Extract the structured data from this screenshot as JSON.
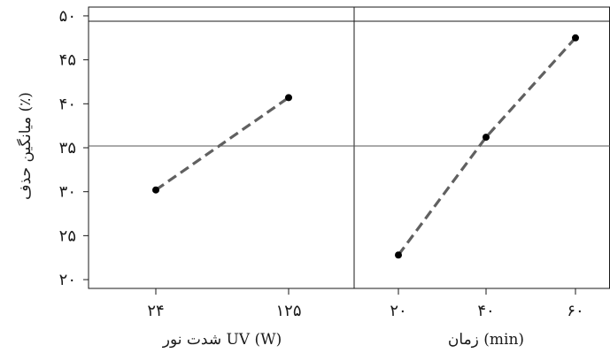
{
  "chart_data": {
    "type": "line",
    "ylabel": "میانگین حذف (٪)",
    "ylim": [
      19,
      51
    ],
    "yticks": [
      20,
      25,
      30,
      35,
      40,
      45,
      50
    ],
    "ytick_labels": [
      "۲۰",
      "۲۵",
      "۳۰",
      "۳۵",
      "۴۰",
      "۴۵",
      "۵۰"
    ],
    "reference_line": 35.2,
    "line_color": "#606060",
    "line_style": "dashed",
    "panels": [
      {
        "xlabel": "شدت نور UV (W)",
        "categories": [
          "۲۴",
          "۱۲۵"
        ],
        "values": [
          30.2,
          40.7
        ]
      },
      {
        "xlabel": "زمان (min)",
        "categories": [
          "۲۰",
          "۴۰",
          "۶۰"
        ],
        "values": [
          22.8,
          36.2,
          47.5
        ]
      }
    ]
  }
}
